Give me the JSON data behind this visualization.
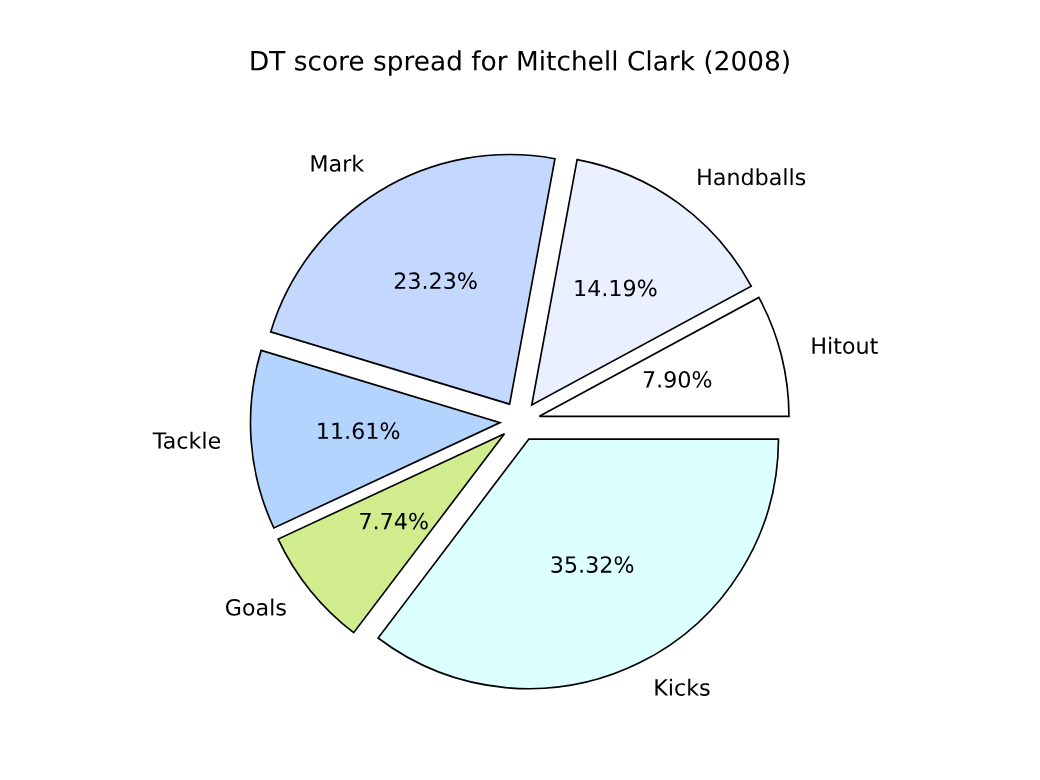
{
  "chart_data": {
    "type": "pie",
    "title": "DT score spread for Mitchell Clark (2008)",
    "categories": [
      "Hitout",
      "Handballs",
      "Mark",
      "Tackle",
      "Goals",
      "Kicks"
    ],
    "values": [
      7.9,
      14.19,
      23.23,
      11.61,
      7.74,
      35.32
    ],
    "value_labels": [
      "7.90%",
      "14.19%",
      "23.23%",
      "11.61%",
      "7.74%",
      "35.32%"
    ],
    "colors": [
      "#ffffff",
      "#eaf0ff",
      "#c4d8ff",
      "#b3d4ff",
      "#d0ec8c",
      "#dcffff"
    ],
    "legend": false
  }
}
